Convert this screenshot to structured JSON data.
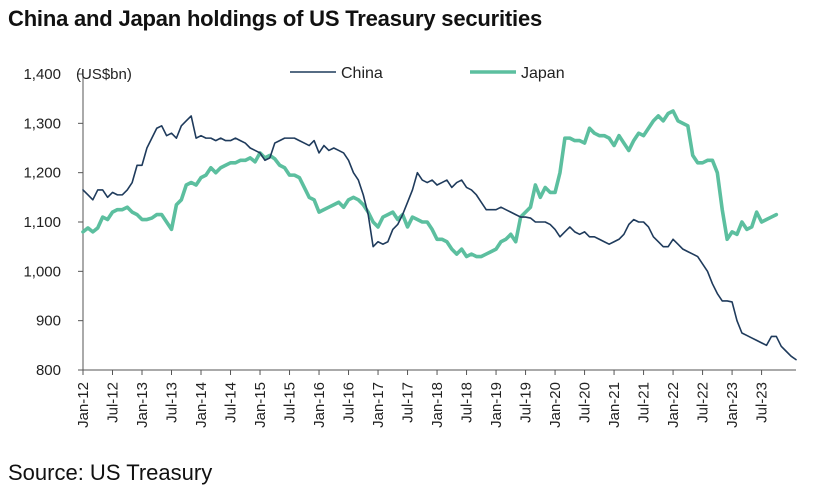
{
  "title": "China and Japan holdings of US Treasury securities",
  "source": "Source: US Treasury",
  "colors": {
    "china": "#1f3b5c",
    "japan": "#5cbf9f",
    "axis": "#555555"
  },
  "chart_data": {
    "type": "line",
    "unit_label": "(US$bn)",
    "ylim": [
      800,
      1400
    ],
    "yticks": [
      800,
      900,
      1000,
      1100,
      1200,
      1300,
      1400
    ],
    "ytick_labels": [
      "800",
      "900",
      "1,000",
      "1,100",
      "1,200",
      "1,300",
      "1,400"
    ],
    "x_start": "Jan-12",
    "x_end": "Jul-23",
    "xtick_labels": [
      "Jan-12",
      "Jul-12",
      "Jan-13",
      "Jul-13",
      "Jan-14",
      "Jul-14",
      "Jan-15",
      "Jul-15",
      "Jan-16",
      "Jul-16",
      "Jan-17",
      "Jul-17",
      "Jan-18",
      "Jul-18",
      "Jan-19",
      "Jul-19",
      "Jan-20",
      "Jul-20",
      "Jan-21",
      "Jul-21",
      "Jan-22",
      "Jul-22",
      "Jan-23",
      "Jul-23"
    ],
    "legend_position": "top-center",
    "series": [
      {
        "name": "China",
        "values": [
          1165,
          1155,
          1145,
          1165,
          1165,
          1150,
          1160,
          1155,
          1155,
          1165,
          1180,
          1215,
          1215,
          1250,
          1270,
          1290,
          1295,
          1275,
          1280,
          1270,
          1295,
          1305,
          1315,
          1270,
          1275,
          1270,
          1270,
          1265,
          1270,
          1265,
          1265,
          1270,
          1265,
          1260,
          1250,
          1245,
          1240,
          1225,
          1230,
          1260,
          1265,
          1270,
          1270,
          1270,
          1265,
          1260,
          1255,
          1265,
          1240,
          1255,
          1245,
          1250,
          1245,
          1240,
          1225,
          1200,
          1185,
          1155,
          1115,
          1050,
          1060,
          1055,
          1060,
          1085,
          1095,
          1115,
          1140,
          1165,
          1200,
          1185,
          1180,
          1185,
          1175,
          1180,
          1185,
          1170,
          1180,
          1185,
          1170,
          1165,
          1155,
          1140,
          1125,
          1125,
          1125,
          1130,
          1125,
          1120,
          1115,
          1110,
          1110,
          1108,
          1100,
          1100,
          1100,
          1095,
          1085,
          1070,
          1080,
          1090,
          1080,
          1075,
          1080,
          1070,
          1070,
          1065,
          1060,
          1055,
          1060,
          1065,
          1075,
          1095,
          1105,
          1100,
          1100,
          1090,
          1070,
          1060,
          1050,
          1050,
          1065,
          1055,
          1045,
          1040,
          1035,
          1030,
          1015,
          1000,
          975,
          955,
          940,
          940,
          938,
          900,
          875,
          870,
          865,
          860,
          855,
          850,
          868,
          868,
          848,
          838,
          828,
          821
        ]
      },
      {
        "name": "Japan",
        "values": [
          1080,
          1088,
          1080,
          1088,
          1110,
          1105,
          1120,
          1125,
          1125,
          1130,
          1120,
          1115,
          1105,
          1105,
          1108,
          1115,
          1115,
          1100,
          1085,
          1135,
          1145,
          1175,
          1180,
          1175,
          1190,
          1195,
          1210,
          1200,
          1210,
          1215,
          1220,
          1220,
          1225,
          1225,
          1230,
          1222,
          1240,
          1230,
          1235,
          1228,
          1215,
          1210,
          1195,
          1195,
          1190,
          1170,
          1150,
          1145,
          1120,
          1125,
          1130,
          1135,
          1140,
          1130,
          1145,
          1150,
          1145,
          1135,
          1120,
          1100,
          1090,
          1110,
          1115,
          1120,
          1105,
          1115,
          1090,
          1110,
          1105,
          1100,
          1100,
          1085,
          1065,
          1065,
          1060,
          1045,
          1035,
          1045,
          1030,
          1035,
          1030,
          1030,
          1035,
          1040,
          1045,
          1060,
          1065,
          1075,
          1060,
          1110,
          1120,
          1130,
          1175,
          1150,
          1170,
          1160,
          1160,
          1200,
          1270,
          1270,
          1265,
          1265,
          1260,
          1290,
          1280,
          1275,
          1275,
          1270,
          1255,
          1275,
          1260,
          1245,
          1265,
          1280,
          1275,
          1290,
          1305,
          1315,
          1305,
          1320,
          1325,
          1305,
          1300,
          1295,
          1235,
          1220,
          1220,
          1225,
          1225,
          1200,
          1125,
          1065,
          1080,
          1075,
          1100,
          1085,
          1090,
          1120,
          1100,
          1105,
          1110,
          1115
        ]
      }
    ]
  }
}
